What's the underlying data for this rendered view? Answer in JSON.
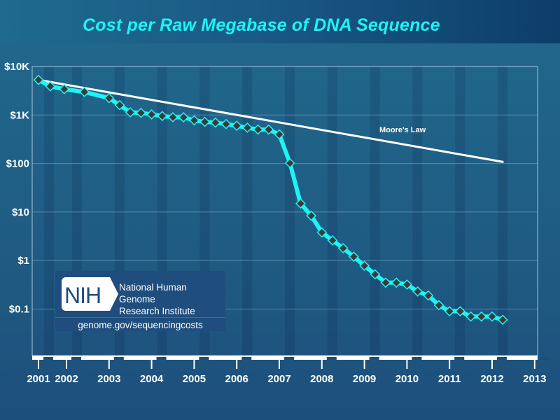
{
  "chart_data": {
    "type": "line",
    "title": "Cost per Raw Megabase of DNA Sequence",
    "xlabel": "",
    "ylabel": "",
    "yscale": "log",
    "ylim": [
      0.01,
      10000
    ],
    "xlim": [
      2001,
      2013
    ],
    "grid": true,
    "yticks": [
      {
        "value": 10000,
        "label": "$10K"
      },
      {
        "value": 1000,
        "label": "$1K"
      },
      {
        "value": 100,
        "label": "$100"
      },
      {
        "value": 10,
        "label": "$10"
      },
      {
        "value": 1,
        "label": "$1"
      },
      {
        "value": 0.1,
        "label": "$0.1"
      }
    ],
    "xticks": [
      "2001",
      "2002",
      "2003",
      "2004",
      "2005",
      "2006",
      "2007",
      "2008",
      "2009",
      "2010",
      "2011",
      "2012",
      "2013"
    ],
    "series": [
      {
        "name": "Cost per Raw Megabase",
        "color": "#1ef3f5",
        "marker_color": "#3a3a3a",
        "points": [
          {
            "x": 2001.75,
            "y": 5292
          },
          {
            "x": 2002.17,
            "y": 3899
          },
          {
            "x": 2002.67,
            "y": 3413
          },
          {
            "x": 2003.17,
            "y": 2987
          },
          {
            "x": 2003.75,
            "y": 2230
          },
          {
            "x": 2004.0,
            "y": 1598
          },
          {
            "x": 2004.25,
            "y": 1136
          },
          {
            "x": 2004.5,
            "y": 1107
          },
          {
            "x": 2004.75,
            "y": 1028
          },
          {
            "x": 2005.0,
            "y": 953
          },
          {
            "x": 2005.25,
            "y": 899
          },
          {
            "x": 2005.5,
            "y": 898
          },
          {
            "x": 2005.75,
            "y": 776
          },
          {
            "x": 2006.0,
            "y": 722
          },
          {
            "x": 2006.25,
            "y": 697
          },
          {
            "x": 2006.5,
            "y": 651
          },
          {
            "x": 2006.75,
            "y": 600
          },
          {
            "x": 2007.0,
            "y": 547
          },
          {
            "x": 2007.25,
            "y": 501
          },
          {
            "x": 2007.5,
            "y": 500
          },
          {
            "x": 2007.75,
            "y": 398
          },
          {
            "x": 2008.0,
            "y": 102
          },
          {
            "x": 2008.25,
            "y": 15
          },
          {
            "x": 2008.5,
            "y": 8.4
          },
          {
            "x": 2008.75,
            "y": 3.8
          },
          {
            "x": 2009.0,
            "y": 2.6
          },
          {
            "x": 2009.25,
            "y": 1.8
          },
          {
            "x": 2009.5,
            "y": 1.2
          },
          {
            "x": 2009.75,
            "y": 0.78
          },
          {
            "x": 2010.0,
            "y": 0.52
          },
          {
            "x": 2010.25,
            "y": 0.35
          },
          {
            "x": 2010.5,
            "y": 0.35
          },
          {
            "x": 2010.75,
            "y": 0.32
          },
          {
            "x": 2011.0,
            "y": 0.23
          },
          {
            "x": 2011.25,
            "y": 0.19
          },
          {
            "x": 2011.5,
            "y": 0.12
          },
          {
            "x": 2011.75,
            "y": 0.09
          },
          {
            "x": 2012.0,
            "y": 0.09
          },
          {
            "x": 2012.25,
            "y": 0.07
          },
          {
            "x": 2012.5,
            "y": 0.07
          },
          {
            "x": 2012.75,
            "y": 0.07
          },
          {
            "x": 2013.0,
            "y": 0.06
          }
        ]
      },
      {
        "name": "Moore's Law",
        "color": "#ffffff",
        "points": [
          {
            "x": 2001.75,
            "y": 5292
          },
          {
            "x": 2013.0,
            "y": 108
          }
        ]
      }
    ],
    "annotations": [
      {
        "text": "Moore's Law",
        "near_series": "Moore's Law",
        "position": "above line, right side"
      }
    ]
  },
  "logo": {
    "badge_text": "NIH",
    "org_line1": "National Human Genome",
    "org_line2": "Research Institute",
    "url": "genome.gov/sequencingcosts"
  }
}
